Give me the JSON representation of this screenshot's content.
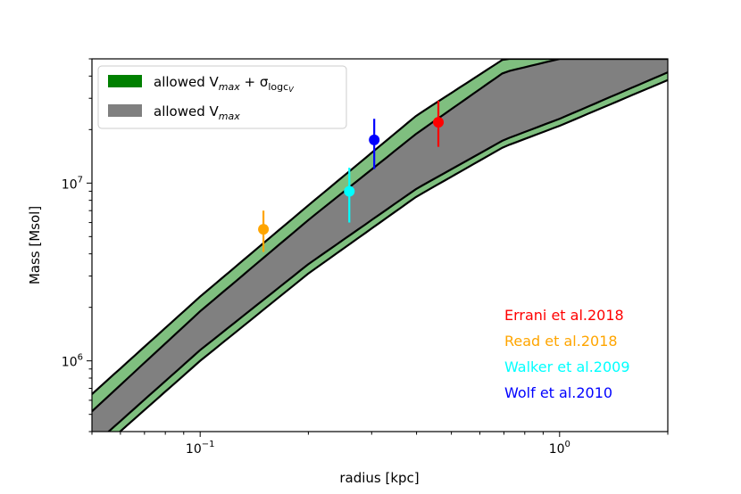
{
  "chart_data": {
    "type": "line",
    "xlabel": "radius [kpc]",
    "ylabel": "Mass [Msol]",
    "xscale": "log",
    "yscale": "log",
    "xlim": [
      0.05,
      2.0
    ],
    "ylim": [
      400000,
      50000000
    ],
    "x_ticks": [
      {
        "value": 0.1,
        "base": "10",
        "exp": "−1"
      },
      {
        "value": 1.0,
        "base": "10",
        "exp": "0"
      }
    ],
    "y_ticks": [
      {
        "value": 1000000,
        "base": "10",
        "exp": "6"
      },
      {
        "value": 10000000,
        "base": "10",
        "exp": "7"
      }
    ],
    "bands": [
      {
        "color": "#7fbf7f",
        "x": [
          0.05,
          0.1,
          0.2,
          0.4,
          0.7,
          1.0,
          2.0
        ],
        "upper": [
          650000,
          2300000,
          7500000,
          24000000,
          50000000,
          50000000,
          50000000
        ],
        "lower": [
          290000,
          1000000,
          3100000,
          8400000,
          16000000,
          21000000,
          38000000
        ]
      },
      {
        "color": "#808080",
        "x": [
          0.05,
          0.1,
          0.2,
          0.4,
          0.7,
          1.0,
          2.0
        ],
        "upper": [
          520000,
          1900000,
          6200000,
          19000000,
          42000000,
          50000000,
          50000000
        ],
        "lower": [
          330000,
          1150000,
          3500000,
          9300000,
          17500000,
          23000000,
          42000000
        ]
      }
    ],
    "curves": [
      {
        "x": [
          0.05,
          0.1,
          0.2,
          0.4,
          0.7,
          1.0,
          2.0
        ],
        "y": [
          650000,
          2300000,
          7500000,
          24000000,
          50000000,
          50000000,
          50000000
        ]
      },
      {
        "x": [
          0.05,
          0.1,
          0.2,
          0.4,
          0.7,
          1.0,
          2.0
        ],
        "y": [
          520000,
          1900000,
          6200000,
          19000000,
          42000000,
          50000000,
          50000000
        ]
      },
      {
        "x": [
          0.05,
          0.1,
          0.2,
          0.4,
          0.7,
          1.0,
          2.0
        ],
        "y": [
          330000,
          1150000,
          3500000,
          9300000,
          17500000,
          23000000,
          42000000
        ]
      },
      {
        "x": [
          0.05,
          0.1,
          0.2,
          0.4,
          0.7,
          1.0,
          2.0
        ],
        "y": [
          290000,
          1000000,
          3100000,
          8400000,
          16000000,
          21000000,
          38000000
        ]
      }
    ],
    "points": [
      {
        "name": "Errani et al.2018",
        "color": "#ff0000",
        "x": 0.46,
        "y": 22000000,
        "ylo": 16000000,
        "yhi": 29000000
      },
      {
        "name": "Read et al.2018",
        "color": "#ffa500",
        "x": 0.15,
        "y": 5500000,
        "ylo": 4100000,
        "yhi": 7000000
      },
      {
        "name": "Walker et al.2009",
        "color": "#00ffff",
        "x": 0.26,
        "y": 9000000,
        "ylo": 6000000,
        "yhi": 12200000
      },
      {
        "name": "Wolf et al.2010",
        "color": "#0000ff",
        "x": 0.305,
        "y": 17500000,
        "ylo": 12000000,
        "yhi": 23000000
      }
    ],
    "legend": {
      "placement": "upper-left",
      "entries": [
        {
          "color": "#008000",
          "text": "allowed V",
          "sub": "max",
          "extra": " + σ",
          "extra_sub": "logc",
          "extra_subsub": "V"
        },
        {
          "color": "#808080",
          "text": "allowed V",
          "sub": "max"
        }
      ]
    },
    "annotations_placement": "lower-right"
  }
}
